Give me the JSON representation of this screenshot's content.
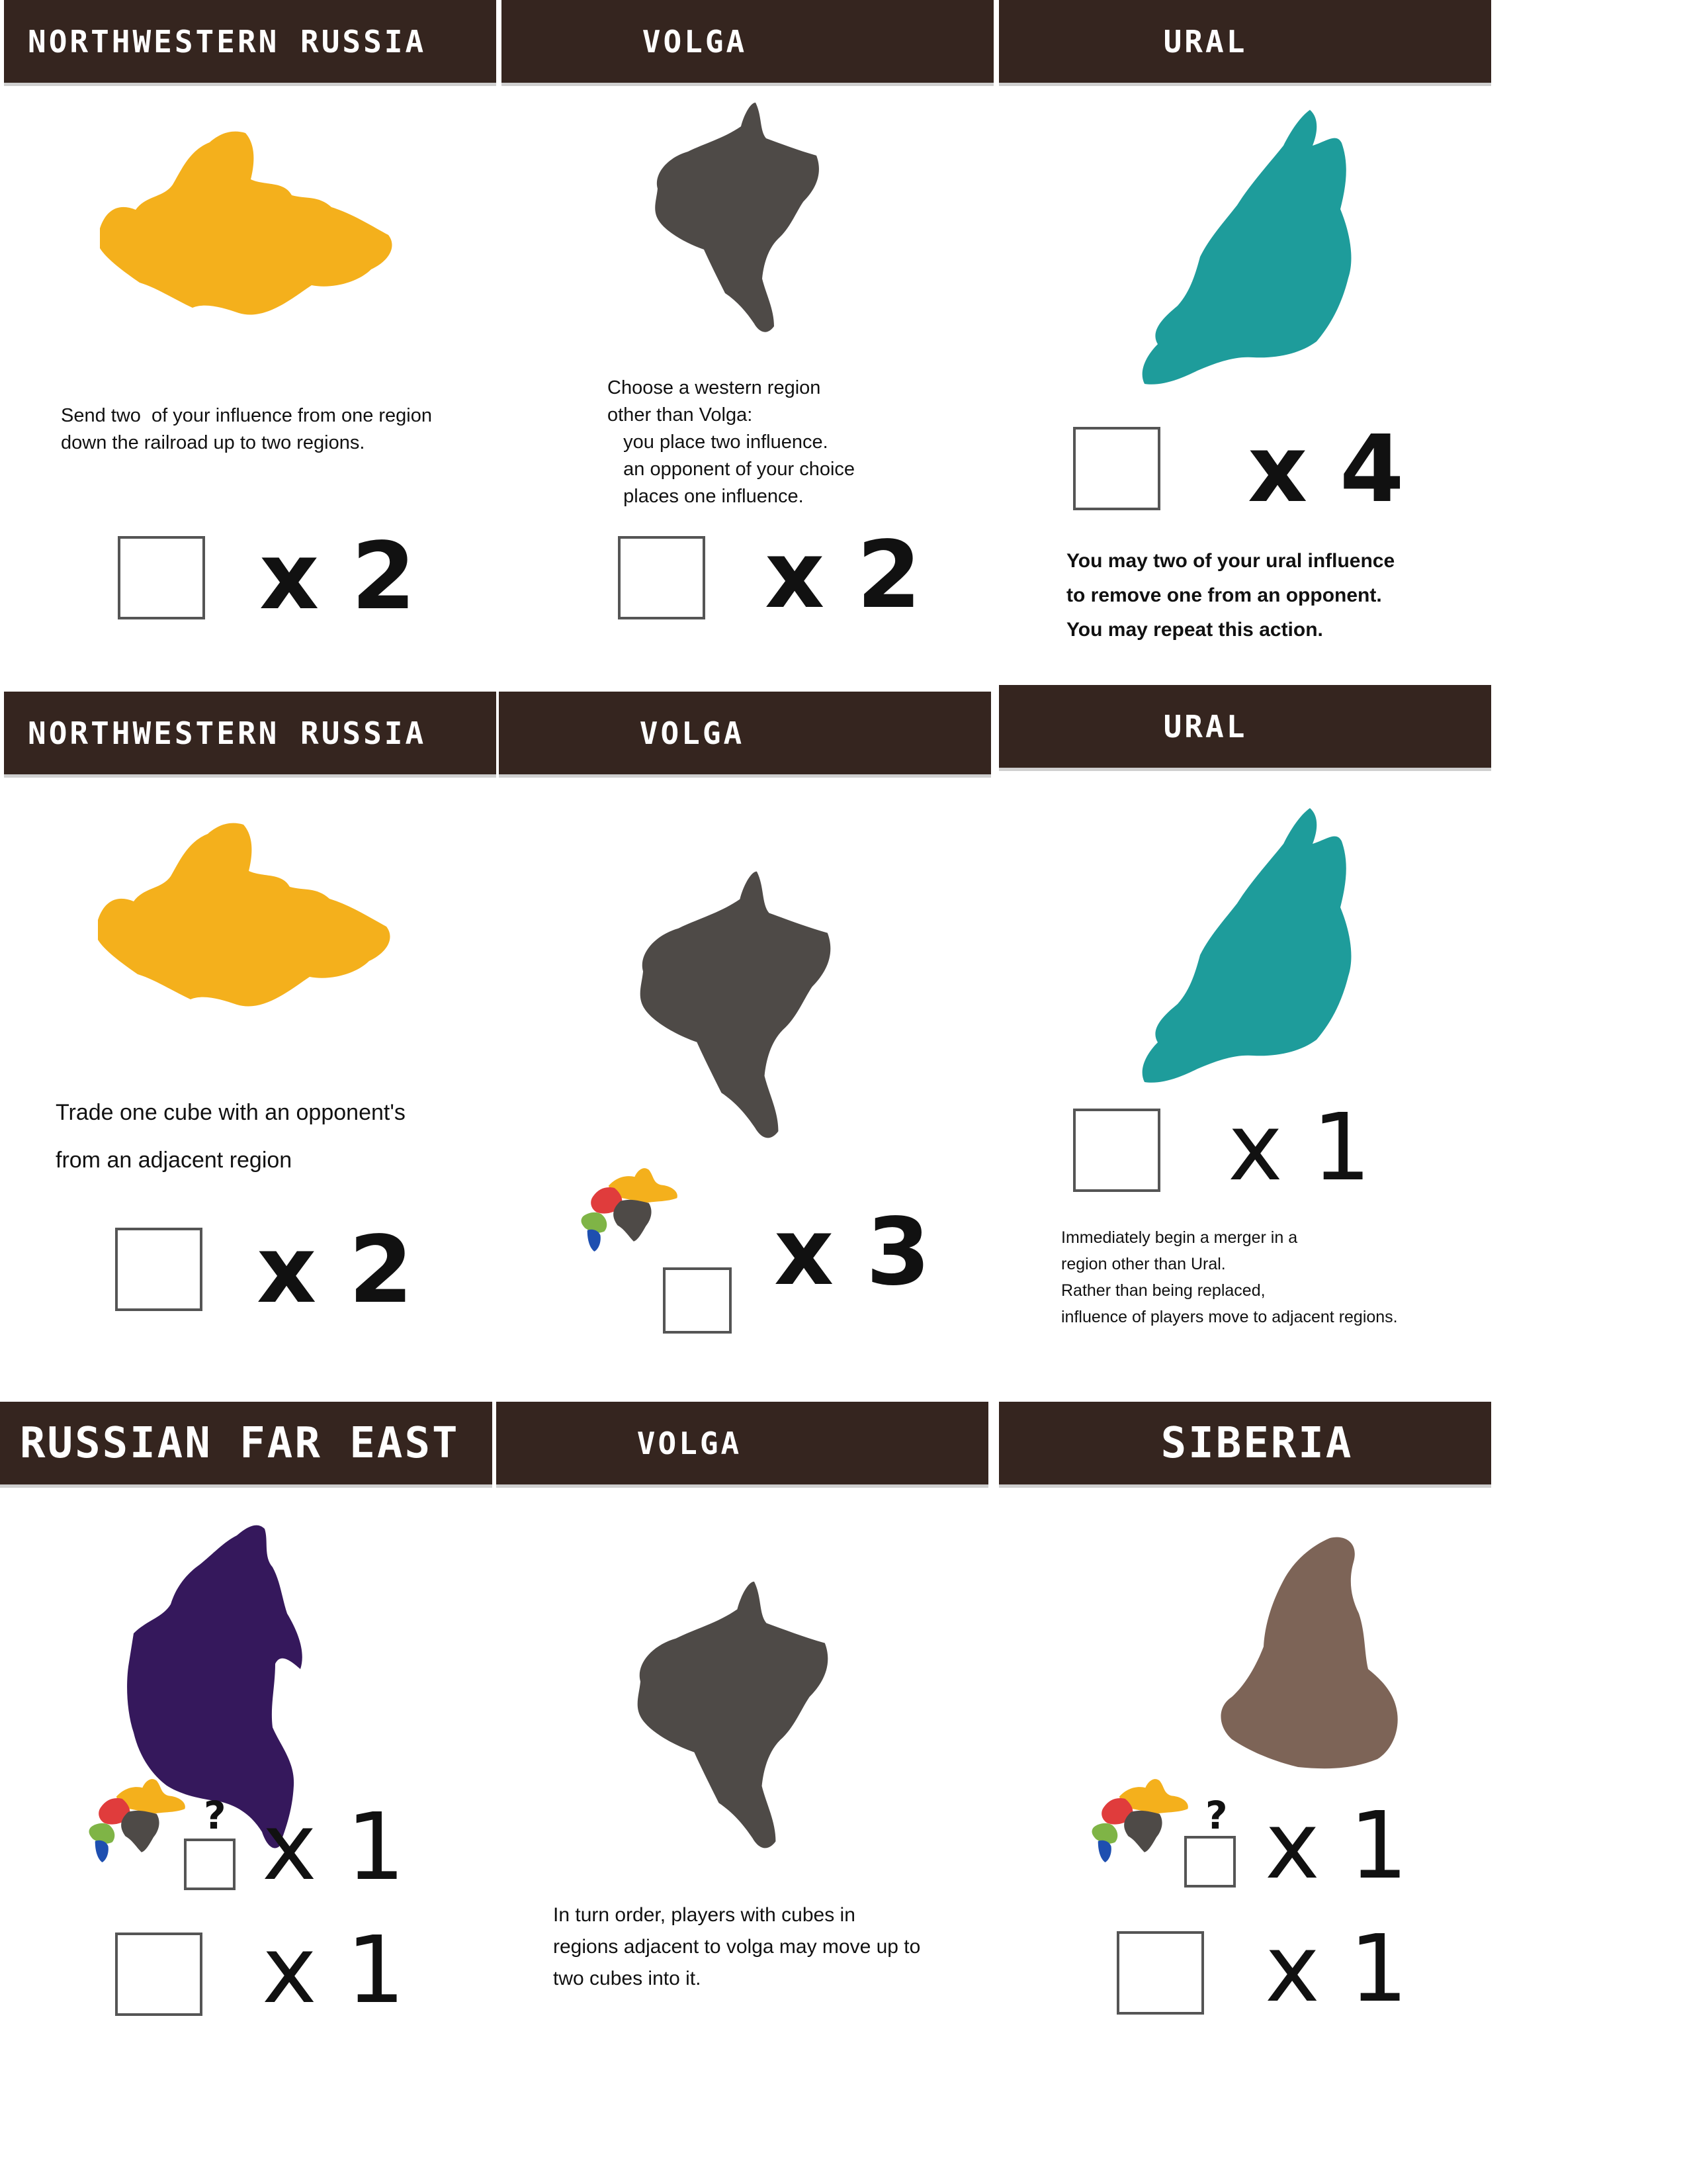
{
  "colors": {
    "header_bg": "#35251f",
    "northwestern_russia": "#f4b01c",
    "volga": "#4e4a47",
    "ural": "#1e9c9b",
    "russian_far_east": "#35185c",
    "siberia": "#7d6457",
    "mini_red": "#e03c3c",
    "mini_green": "#7fb446",
    "mini_blue": "#1e4fb0"
  },
  "cards": [
    {
      "title": "NORTHWESTERN RUSSIA",
      "map_icon": "northwestern-russia-map",
      "text": "Send two  of your influence from one region\ndown the railroad up to two regions.",
      "multipliers": [
        "x 2"
      ]
    },
    {
      "title": "VOLGA",
      "map_icon": "volga-map",
      "text": "Choose a western region\nother than Volga:\n   you place two influence.\n   an opponent of your choice\n   places one influence.",
      "multipliers": [
        "x 2"
      ]
    },
    {
      "title": "URAL",
      "map_icon": "ural-map",
      "text": "You may two of your ural influence\nto remove one from an opponent.\nYou may repeat this action.",
      "multipliers": [
        "x 4"
      ]
    },
    {
      "title": "NORTHWESTERN RUSSIA",
      "map_icon": "northwestern-russia-map",
      "text": "Trade one cube with an opponent's\nfrom an adjacent region",
      "multipliers": [
        "x 2"
      ]
    },
    {
      "title": "VOLGA",
      "map_icon": "volga-map",
      "text": "",
      "multipliers": [
        "x 3"
      ]
    },
    {
      "title": "URAL",
      "map_icon": "ural-map",
      "text": "Immediately begin a merger in a\nregion other than Ural.\nRather than being replaced,\ninfluence of players move to adjacent regions.",
      "multipliers": [
        "x 1"
      ]
    },
    {
      "title": "RUSSIAN FAR EAST",
      "map_icon": "russian-far-east-map",
      "text": "",
      "question": "?",
      "multipliers": [
        "x 1",
        "x 1"
      ]
    },
    {
      "title": "VOLGA",
      "map_icon": "volga-map",
      "text": "In turn order, players with cubes in\nregions adjacent to volga may move up to\ntwo cubes into it.",
      "multipliers": []
    },
    {
      "title": "SIBERIA",
      "map_icon": "siberia-map",
      "text": "",
      "question": "?",
      "multipliers": [
        "x 1",
        "x 1"
      ]
    }
  ]
}
